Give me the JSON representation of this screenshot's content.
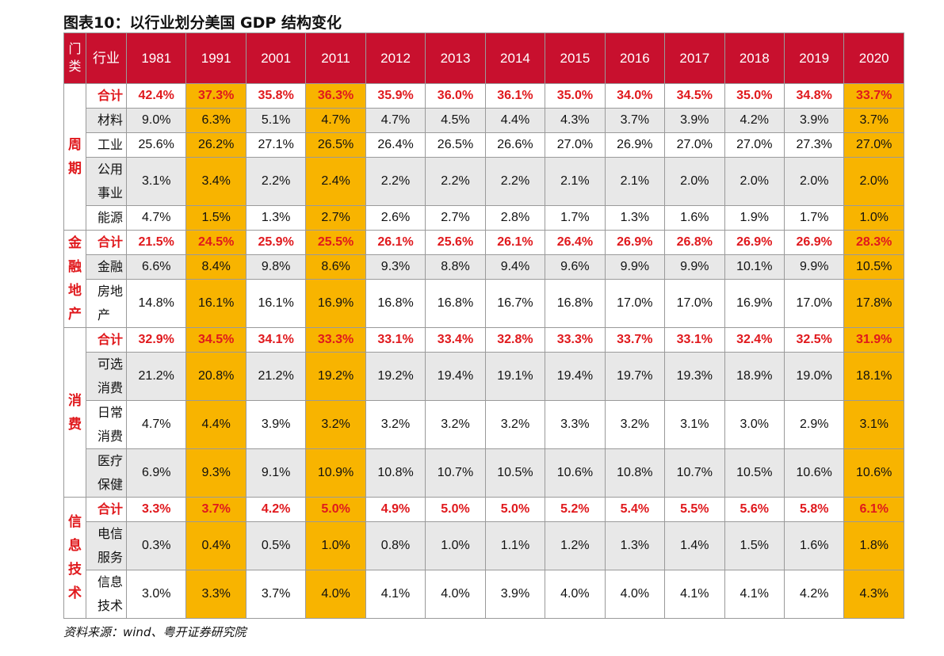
{
  "title": "图表10：以行业划分美国 GDP 结构变化",
  "header": {
    "category": "门类",
    "industry": "行业",
    "years": [
      "1981",
      "1991",
      "2001",
      "2011",
      "2012",
      "2013",
      "2014",
      "2015",
      "2016",
      "2017",
      "2018",
      "2019",
      "2020"
    ]
  },
  "groups": [
    {
      "name": "周期",
      "rows": [
        {
          "industry": "合计",
          "values": [
            "42.4%",
            "37.3%",
            "35.8%",
            "36.3%",
            "35.9%",
            "36.0%",
            "36.1%",
            "35.0%",
            "34.0%",
            "34.5%",
            "35.0%",
            "34.8%",
            "33.7%"
          ]
        },
        {
          "industry": "材料",
          "values": [
            "9.0%",
            "6.3%",
            "5.1%",
            "4.7%",
            "4.7%",
            "4.5%",
            "4.4%",
            "4.3%",
            "3.7%",
            "3.9%",
            "4.2%",
            "3.9%",
            "3.7%"
          ]
        },
        {
          "industry": "工业",
          "values": [
            "25.6%",
            "26.2%",
            "27.1%",
            "26.5%",
            "26.4%",
            "26.5%",
            "26.6%",
            "27.0%",
            "26.9%",
            "27.0%",
            "27.0%",
            "27.3%",
            "27.0%"
          ]
        },
        {
          "industry": "公用事业",
          "values": [
            "3.1%",
            "3.4%",
            "2.2%",
            "2.4%",
            "2.2%",
            "2.2%",
            "2.2%",
            "2.1%",
            "2.1%",
            "2.0%",
            "2.0%",
            "2.0%",
            "2.0%"
          ]
        },
        {
          "industry": "能源",
          "values": [
            "4.7%",
            "1.5%",
            "1.3%",
            "2.7%",
            "2.6%",
            "2.7%",
            "2.8%",
            "1.7%",
            "1.3%",
            "1.6%",
            "1.9%",
            "1.7%",
            "1.0%"
          ]
        }
      ]
    },
    {
      "name": "金融地产",
      "rows": [
        {
          "industry": "合计",
          "values": [
            "21.5%",
            "24.5%",
            "25.9%",
            "25.5%",
            "26.1%",
            "25.6%",
            "26.1%",
            "26.4%",
            "26.9%",
            "26.8%",
            "26.9%",
            "26.9%",
            "28.3%"
          ]
        },
        {
          "industry": "金融",
          "values": [
            "6.6%",
            "8.4%",
            "9.8%",
            "8.6%",
            "9.3%",
            "8.8%",
            "9.4%",
            "9.6%",
            "9.9%",
            "9.9%",
            "10.1%",
            "9.9%",
            "10.5%"
          ]
        },
        {
          "industry": "房地产",
          "values": [
            "14.8%",
            "16.1%",
            "16.1%",
            "16.9%",
            "16.8%",
            "16.8%",
            "16.7%",
            "16.8%",
            "17.0%",
            "17.0%",
            "16.9%",
            "17.0%",
            "17.8%"
          ]
        }
      ]
    },
    {
      "name": "消费",
      "rows": [
        {
          "industry": "合计",
          "values": [
            "32.9%",
            "34.5%",
            "34.1%",
            "33.3%",
            "33.1%",
            "33.4%",
            "32.8%",
            "33.3%",
            "33.7%",
            "33.1%",
            "32.4%",
            "32.5%",
            "31.9%"
          ]
        },
        {
          "industry": "可选消费",
          "values": [
            "21.2%",
            "20.8%",
            "21.2%",
            "19.2%",
            "19.2%",
            "19.4%",
            "19.1%",
            "19.4%",
            "19.7%",
            "19.3%",
            "18.9%",
            "19.0%",
            "18.1%"
          ]
        },
        {
          "industry": "日常消费",
          "values": [
            "4.7%",
            "4.4%",
            "3.9%",
            "3.2%",
            "3.2%",
            "3.2%",
            "3.2%",
            "3.3%",
            "3.2%",
            "3.1%",
            "3.0%",
            "2.9%",
            "3.1%"
          ]
        },
        {
          "industry": "医疗保健",
          "values": [
            "6.9%",
            "9.3%",
            "9.1%",
            "10.9%",
            "10.8%",
            "10.7%",
            "10.5%",
            "10.6%",
            "10.8%",
            "10.7%",
            "10.5%",
            "10.6%",
            "10.6%"
          ]
        }
      ]
    },
    {
      "name": "信息技术",
      "rows": [
        {
          "industry": "合计",
          "values": [
            "3.3%",
            "3.7%",
            "4.2%",
            "5.0%",
            "4.9%",
            "5.0%",
            "5.0%",
            "5.2%",
            "5.4%",
            "5.5%",
            "5.6%",
            "5.8%",
            "6.1%"
          ]
        },
        {
          "industry": "电信服务",
          "values": [
            "0.3%",
            "0.4%",
            "0.5%",
            "1.0%",
            "0.8%",
            "1.0%",
            "1.1%",
            "1.2%",
            "1.3%",
            "1.4%",
            "1.5%",
            "1.6%",
            "1.8%"
          ]
        },
        {
          "industry": "信息技术",
          "values": [
            "3.0%",
            "3.3%",
            "3.7%",
            "4.0%",
            "4.1%",
            "4.0%",
            "3.9%",
            "4.0%",
            "4.0%",
            "4.1%",
            "4.1%",
            "4.2%",
            "4.3%"
          ]
        }
      ]
    }
  ],
  "highlight_years": [
    "1991",
    "2011",
    "2020"
  ],
  "source": "资料来源：wind、粤开证券研究院",
  "colors": {
    "header_bg": "#c8102e",
    "highlight": "#f8b400",
    "total_text": "#e0191d",
    "shade": "#e8e8e8"
  }
}
